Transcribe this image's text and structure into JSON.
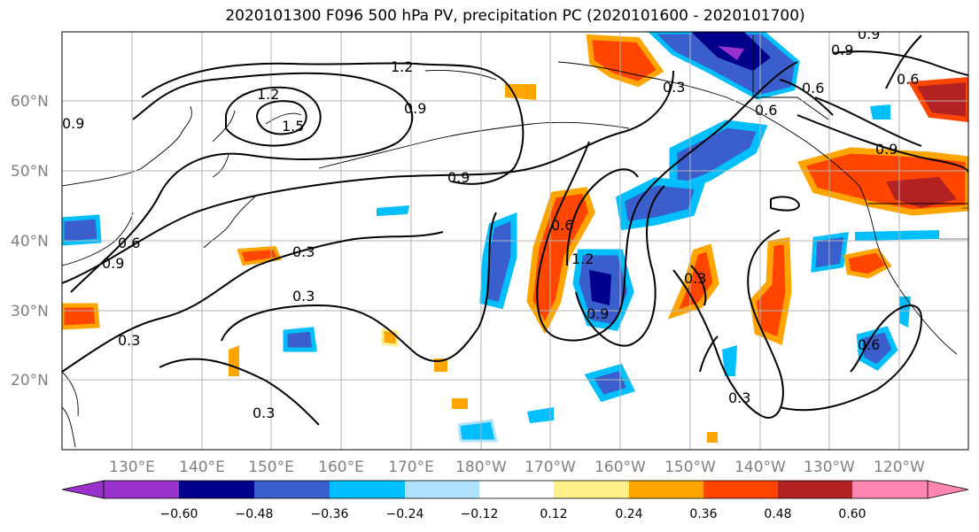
{
  "title": "2020101300 F096 500 hPa PV, precipitation PC (2020101600 - 2020101700)",
  "map": {
    "lat_ticks": [
      "20°N",
      "30°N",
      "40°N",
      "50°N",
      "60°N"
    ],
    "lon_ticks": [
      "130°E",
      "140°E",
      "150°E",
      "160°E",
      "170°E",
      "180°W",
      "170°W",
      "160°W",
      "150°W",
      "140°W",
      "130°W",
      "120°W"
    ],
    "pv_contour_labels": [
      "1.2",
      "1.2",
      "1.5",
      "0.9",
      "0.9",
      "0.9",
      "0.6",
      "0.9",
      "0.3",
      "0.3",
      "0.3",
      "0.3",
      "0.6",
      "1.2",
      "0.9",
      "0.3",
      "0.3",
      "0.6",
      "0.9",
      "0.6",
      "0.3",
      "0.6",
      "0.9",
      "0.6",
      "0.9"
    ]
  },
  "colorbar": {
    "tick_labels": [
      "−0.60",
      "−0.48",
      "−0.36",
      "−0.24",
      "−0.12",
      "0.12",
      "0.24",
      "0.36",
      "0.48",
      "0.60"
    ],
    "colors": [
      "#9932cc",
      "#00008b",
      "#3a5fcd",
      "#00bfff",
      "#b0e2ff",
      "#ffffff",
      "#fff08a",
      "#ffa500",
      "#ff4500",
      "#b22222",
      "#ff86b0"
    ]
  }
}
